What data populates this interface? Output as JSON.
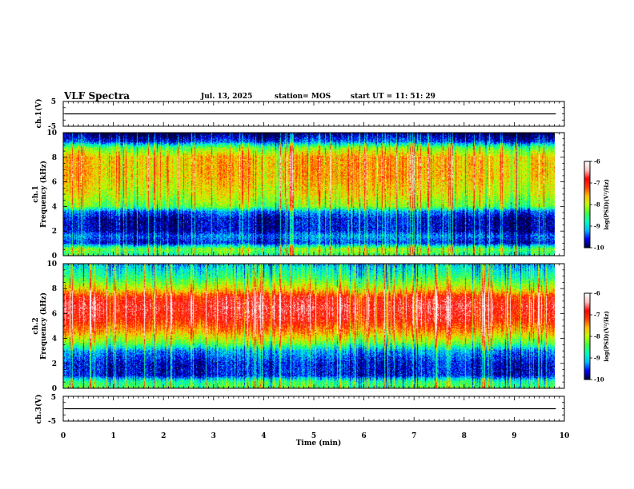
{
  "header": {
    "title": "VLF Spectra",
    "date": "Jul. 13, 2025",
    "station": "station= MOS",
    "start_ut": "start UT =  11: 51: 29"
  },
  "chart_data": {
    "type": "heatmap",
    "title": "VLF Spectra",
    "xlabel": "Time (min)",
    "xlim": [
      0,
      10
    ],
    "x_ticks": [
      "0",
      "1",
      "2",
      "3",
      "4",
      "5",
      "6",
      "7",
      "8",
      "9",
      "10"
    ],
    "data_end_min": 9.83,
    "panels": [
      {
        "name": "ch1-voltage",
        "type": "line",
        "ylabel": "ch.1(V)",
        "ylim": [
          -5,
          5
        ],
        "y_ticks": [
          "5",
          "-5"
        ],
        "baseline_value": 0
      },
      {
        "name": "ch1-spectrogram",
        "type": "heatmap",
        "ylabel_top": "ch.1",
        "ylabel": "Frequency (kHz)",
        "ylim": [
          0,
          10
        ],
        "y_ticks": [
          "0",
          "2",
          "4",
          "6",
          "8",
          "10"
        ],
        "band_profile": [
          {
            "f_khz": 0.0,
            "level": -8.6
          },
          {
            "f_khz": 0.5,
            "level": -8.2
          },
          {
            "f_khz": 1.0,
            "level": -9.6
          },
          {
            "f_khz": 1.6,
            "level": -9.3
          },
          {
            "f_khz": 2.0,
            "level": -9.7
          },
          {
            "f_khz": 3.0,
            "level": -9.7
          },
          {
            "f_khz": 3.6,
            "level": -9.3
          },
          {
            "f_khz": 4.0,
            "level": -8.3
          },
          {
            "f_khz": 5.0,
            "level": -7.9
          },
          {
            "f_khz": 6.5,
            "level": -7.6
          },
          {
            "f_khz": 8.0,
            "level": -7.6
          },
          {
            "f_khz": 8.8,
            "level": -8.3
          },
          {
            "f_khz": 9.3,
            "level": -9.5
          },
          {
            "f_khz": 10.0,
            "level": -10.0
          }
        ]
      },
      {
        "name": "ch2-spectrogram",
        "type": "heatmap",
        "ylabel_top": "ch.2",
        "ylabel": "Frequency (kHz)",
        "ylim": [
          0,
          10
        ],
        "y_ticks": [
          "0",
          "2",
          "4",
          "6",
          "8",
          "10"
        ],
        "band_profile": [
          {
            "f_khz": 0.0,
            "level": -8.4
          },
          {
            "f_khz": 0.5,
            "level": -8.6
          },
          {
            "f_khz": 1.0,
            "level": -9.6
          },
          {
            "f_khz": 2.0,
            "level": -9.6
          },
          {
            "f_khz": 3.0,
            "level": -9.2
          },
          {
            "f_khz": 3.6,
            "level": -8.3
          },
          {
            "f_khz": 4.5,
            "level": -7.5
          },
          {
            "f_khz": 5.5,
            "level": -6.9
          },
          {
            "f_khz": 6.5,
            "level": -6.7
          },
          {
            "f_khz": 7.3,
            "level": -6.9
          },
          {
            "f_khz": 8.0,
            "level": -7.8
          },
          {
            "f_khz": 9.0,
            "level": -8.6
          },
          {
            "f_khz": 10.0,
            "level": -9.1
          }
        ]
      },
      {
        "name": "ch3-voltage",
        "type": "line",
        "ylabel": "ch.3(V)",
        "ylim": [
          -5,
          5
        ],
        "y_ticks": [
          "5",
          "-5"
        ],
        "baseline_value": 0
      }
    ],
    "colorbars": [
      {
        "name": "ch1-colorbar",
        "label": "log(PSD)(V²/Hz)",
        "range": [
          -10,
          -6
        ],
        "ticks": [
          "-6",
          "-7",
          "-8",
          "-9",
          "-10"
        ]
      },
      {
        "name": "ch2-colorbar",
        "label": "log(PSD)(V²/Hz)",
        "range": [
          -10,
          -6
        ],
        "ticks": [
          "-6",
          "-7",
          "-8",
          "-9",
          "-10"
        ]
      }
    ],
    "colormap": [
      "#000040",
      "#0000ff",
      "#00bfff",
      "#00ffbf",
      "#40ff40",
      "#bfff00",
      "#ffbf00",
      "#ff4000",
      "#ff0000",
      "#ffc0c0",
      "#ffffff"
    ]
  }
}
